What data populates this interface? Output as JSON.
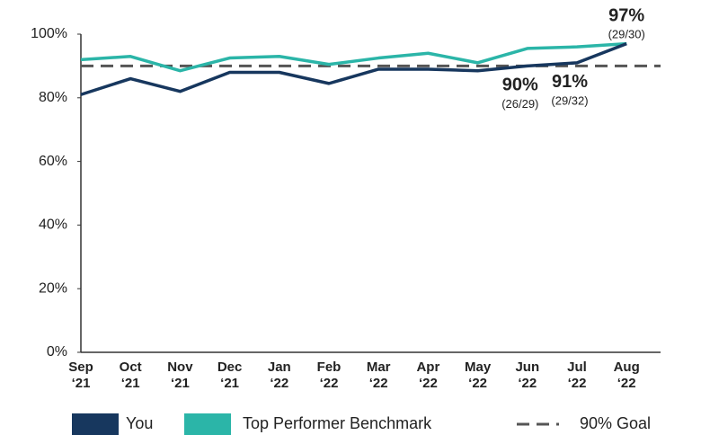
{
  "chart_data": {
    "type": "line",
    "categories": [
      "Sep ‘21",
      "Oct ‘21",
      "Nov ‘21",
      "Dec ‘21",
      "Jan ‘22",
      "Feb ‘22",
      "Mar ‘22",
      "Apr ‘22",
      "May ‘22",
      "Jun ‘22",
      "Jul ‘22",
      "Aug ‘22"
    ],
    "series": [
      {
        "name": "You",
        "color": "#17375e",
        "values": [
          81,
          86,
          82,
          88,
          88,
          84.5,
          89,
          89,
          88.5,
          90,
          91,
          97
        ],
        "value_labels": [
          null,
          null,
          null,
          null,
          null,
          null,
          null,
          null,
          null,
          "90%",
          "91%",
          "97%"
        ],
        "value_notes": [
          null,
          null,
          null,
          null,
          null,
          null,
          null,
          null,
          null,
          "(26/29)",
          "(29/32)",
          "(29/30)"
        ]
      },
      {
        "name": "Top Performer Benchmark",
        "color": "#2bb5a8",
        "values": [
          92,
          93,
          88.5,
          92.5,
          93,
          90.5,
          92.5,
          94,
          91,
          95.5,
          96,
          97
        ]
      }
    ],
    "goal": {
      "name": "90% Goal",
      "value": 90,
      "color": "#555555"
    },
    "ylim": [
      0,
      100
    ],
    "yticks": [
      {
        "value": 0,
        "label": "0%"
      },
      {
        "value": 20,
        "label": "20%"
      },
      {
        "value": 40,
        "label": "40%"
      },
      {
        "value": 60,
        "label": "60%"
      },
      {
        "value": 80,
        "label": "80%"
      },
      {
        "value": 100,
        "label": "100%"
      }
    ],
    "grid": false,
    "legend": "bottom"
  }
}
